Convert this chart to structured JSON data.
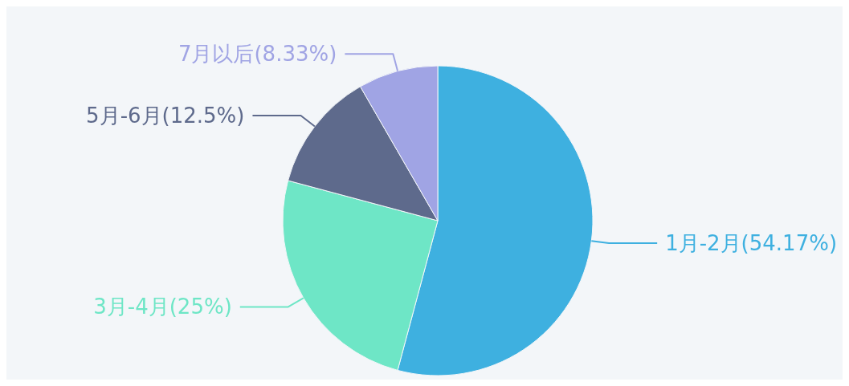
{
  "chart_data": {
    "type": "pie",
    "categories": [
      "1月-2月",
      "3月-4月",
      "5月-6月",
      "7月以后"
    ],
    "values": [
      54.17,
      25,
      12.5,
      8.33
    ],
    "value_labels": [
      "(54.17%)",
      "(25%)",
      "(12.5%)",
      "(8.33%)"
    ],
    "colors": [
      "#3eb0e0",
      "#6ee6c6",
      "#5e6a8c",
      "#a0a4e4"
    ],
    "legend": false
  }
}
